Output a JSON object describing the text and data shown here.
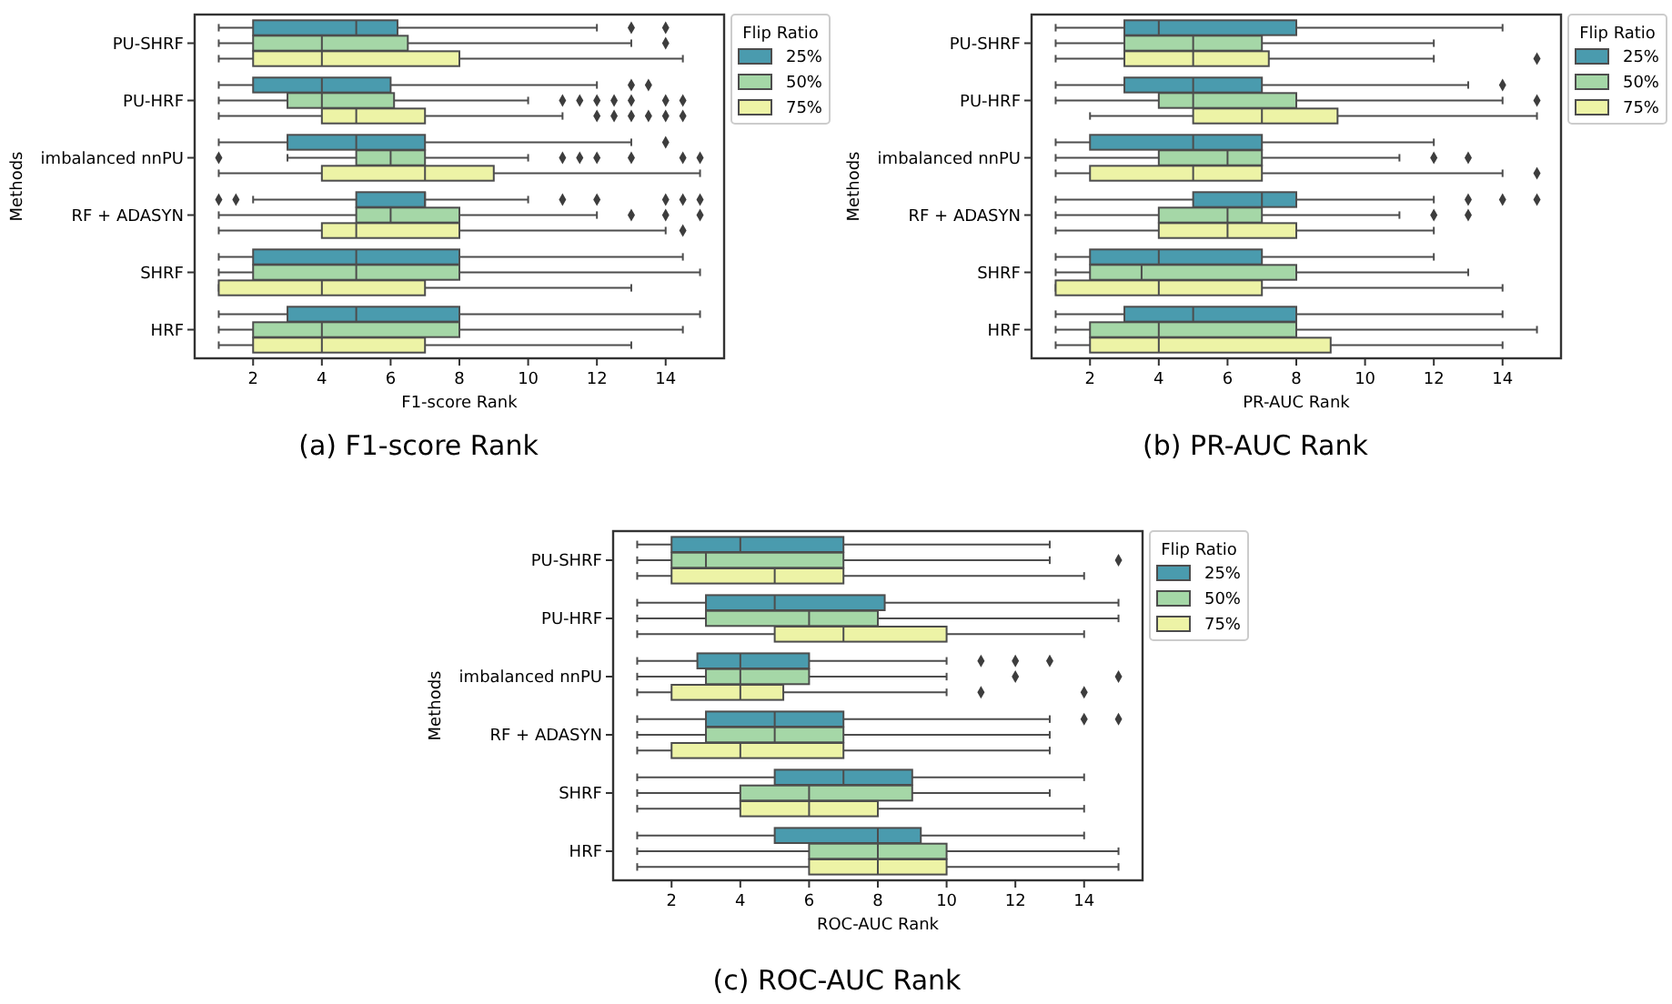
{
  "chart_data": [
    {
      "type": "box",
      "orientation": "horizontal",
      "xlabel": "F1-score Rank",
      "ylabel": "Methods",
      "legend_title": "Flip Ratio",
      "legend": "top right",
      "grid": false,
      "annotations": [
        "(a) F1-score Rank"
      ],
      "categories": [
        "PU-SHRF",
        "PU-HRF",
        "imbalanced nnPU",
        "RF + ADASYN",
        "SHRF",
        "HRF"
      ],
      "xlim": [
        0.3,
        15.7
      ],
      "xticks": [
        2,
        4,
        6,
        8,
        10,
        12,
        14
      ],
      "series": [
        {
          "name": "25%",
          "color": "#4a9bae",
          "boxes": [
            {
              "low": 1,
              "q1": 2,
              "median": 5,
              "q3": 6.2,
              "high": 12,
              "outliers": [
                13,
                14
              ]
            },
            {
              "low": 1,
              "q1": 2,
              "median": 4,
              "q3": 6,
              "high": 12,
              "outliers": [
                13,
                13.5
              ]
            },
            {
              "low": 1,
              "q1": 3,
              "median": 5,
              "q3": 7,
              "high": 13,
              "outliers": [
                14
              ]
            },
            {
              "low": 2,
              "q1": 5,
              "median": 7,
              "q3": 7,
              "high": 10,
              "outliers": [
                1,
                1.5,
                11,
                12,
                14,
                14.5,
                15
              ]
            },
            {
              "low": 1,
              "q1": 2,
              "median": 5,
              "q3": 8,
              "high": 14.5
            },
            {
              "low": 1,
              "q1": 3,
              "median": 5,
              "q3": 8,
              "high": 15
            }
          ]
        },
        {
          "name": "50%",
          "color": "#a5d7a7",
          "boxes": [
            {
              "low": 1,
              "q1": 2,
              "median": 4,
              "q3": 6.5,
              "high": 13,
              "outliers": [
                14
              ]
            },
            {
              "low": 1,
              "q1": 3,
              "median": 4,
              "q3": 6.1,
              "high": 10,
              "outliers": [
                11,
                11.5,
                12,
                12.5,
                13,
                14,
                14.5
              ]
            },
            {
              "low": 3,
              "q1": 5,
              "median": 6,
              "q3": 7,
              "high": 10,
              "outliers": [
                1,
                11,
                11.5,
                12,
                13,
                14.5,
                15
              ]
            },
            {
              "low": 1,
              "q1": 5,
              "median": 6,
              "q3": 8,
              "high": 12,
              "outliers": [
                13,
                14,
                15
              ]
            },
            {
              "low": 1,
              "q1": 2,
              "median": 5,
              "q3": 8,
              "high": 15
            },
            {
              "low": 1,
              "q1": 2,
              "median": 4,
              "q3": 8,
              "high": 14.5
            }
          ]
        },
        {
          "name": "75%",
          "color": "#edf3a6",
          "boxes": [
            {
              "low": 1,
              "q1": 2,
              "median": 4,
              "q3": 8,
              "high": 14.5
            },
            {
              "low": 1,
              "q1": 4,
              "median": 5,
              "q3": 7,
              "high": 11,
              "outliers": [
                12,
                12.5,
                13,
                13.5,
                14,
                14.5
              ]
            },
            {
              "low": 1,
              "q1": 4,
              "median": 7,
              "q3": 9,
              "high": 15
            },
            {
              "low": 1,
              "q1": 4,
              "median": 5,
              "q3": 8,
              "high": 14,
              "outliers": [
                14.5
              ]
            },
            {
              "low": 1,
              "q1": 1,
              "median": 4,
              "q3": 7,
              "high": 13
            },
            {
              "low": 1,
              "q1": 2,
              "median": 4,
              "q3": 7,
              "high": 13
            }
          ]
        }
      ]
    },
    {
      "type": "box",
      "orientation": "horizontal",
      "xlabel": "PR-AUC Rank",
      "ylabel": "Methods",
      "legend_title": "Flip Ratio",
      "legend": "top right",
      "grid": false,
      "annotations": [
        "(b) PR-AUC Rank"
      ],
      "categories": [
        "PU-SHRF",
        "PU-HRF",
        "imbalanced nnPU",
        "RF + ADASYN",
        "SHRF",
        "HRF"
      ],
      "xlim": [
        0.3,
        15.7
      ],
      "xticks": [
        2,
        4,
        6,
        8,
        10,
        12,
        14
      ],
      "series": [
        {
          "name": "25%",
          "color": "#4a9bae",
          "boxes": [
            {
              "low": 1,
              "q1": 3,
              "median": 4,
              "q3": 8,
              "high": 14
            },
            {
              "low": 1,
              "q1": 3,
              "median": 5,
              "q3": 7,
              "high": 13,
              "outliers": [
                14
              ]
            },
            {
              "low": 1,
              "q1": 2,
              "median": 5,
              "q3": 7,
              "high": 12
            },
            {
              "low": 1,
              "q1": 5,
              "median": 7,
              "q3": 8,
              "high": 12,
              "outliers": [
                13,
                14,
                15
              ]
            },
            {
              "low": 1,
              "q1": 2,
              "median": 4,
              "q3": 7,
              "high": 12
            },
            {
              "low": 1,
              "q1": 3,
              "median": 5,
              "q3": 8,
              "high": 14
            }
          ]
        },
        {
          "name": "50%",
          "color": "#a5d7a7",
          "boxes": [
            {
              "low": 1,
              "q1": 3,
              "median": 5,
              "q3": 7,
              "high": 12
            },
            {
              "low": 1,
              "q1": 4,
              "median": 5,
              "q3": 8,
              "high": 14,
              "outliers": [
                15
              ]
            },
            {
              "low": 1,
              "q1": 4,
              "median": 6,
              "q3": 7,
              "high": 11,
              "outliers": [
                12,
                13
              ]
            },
            {
              "low": 1,
              "q1": 4,
              "median": 6,
              "q3": 7,
              "high": 11,
              "outliers": [
                12,
                13
              ]
            },
            {
              "low": 1,
              "q1": 2,
              "median": 3.5,
              "q3": 8,
              "high": 13
            },
            {
              "low": 1,
              "q1": 2,
              "median": 4,
              "q3": 8,
              "high": 15
            }
          ]
        },
        {
          "name": "75%",
          "color": "#edf3a6",
          "boxes": [
            {
              "low": 1,
              "q1": 3,
              "median": 5,
              "q3": 7.2,
              "high": 12,
              "outliers": [
                15
              ]
            },
            {
              "low": 2,
              "q1": 5,
              "median": 7,
              "q3": 9.2,
              "high": 15
            },
            {
              "low": 1,
              "q1": 2,
              "median": 5,
              "q3": 7,
              "high": 14,
              "outliers": [
                15
              ]
            },
            {
              "low": 1,
              "q1": 4,
              "median": 6,
              "q3": 8,
              "high": 12
            },
            {
              "low": 1,
              "q1": 1,
              "median": 4,
              "q3": 7,
              "high": 14
            },
            {
              "low": 1,
              "q1": 2,
              "median": 4,
              "q3": 9,
              "high": 14
            }
          ]
        }
      ]
    },
    {
      "type": "box",
      "orientation": "horizontal",
      "xlabel": "ROC-AUC Rank",
      "ylabel": "Methods",
      "legend_title": "Flip Ratio",
      "legend": "top right",
      "grid": false,
      "annotations": [
        "(c) ROC-AUC Rank"
      ],
      "categories": [
        "PU-SHRF",
        "PU-HRF",
        "imbalanced nnPU",
        "RF + ADASYN",
        "SHRF",
        "HRF"
      ],
      "xlim": [
        0.3,
        15.7
      ],
      "xticks": [
        2,
        4,
        6,
        8,
        10,
        12,
        14
      ],
      "series": [
        {
          "name": "25%",
          "color": "#4a9bae",
          "boxes": [
            {
              "low": 1,
              "q1": 2,
              "median": 4,
              "q3": 7,
              "high": 13
            },
            {
              "low": 1,
              "q1": 3,
              "median": 5,
              "q3": 8.2,
              "high": 15
            },
            {
              "low": 1,
              "q1": 2.75,
              "median": 4,
              "q3": 6,
              "high": 10,
              "outliers": [
                11,
                12,
                13
              ]
            },
            {
              "low": 1,
              "q1": 3,
              "median": 5,
              "q3": 7,
              "high": 13,
              "outliers": [
                14,
                15
              ]
            },
            {
              "low": 1,
              "q1": 5,
              "median": 7,
              "q3": 9,
              "high": 14
            },
            {
              "low": 1,
              "q1": 5,
              "median": 8,
              "q3": 9.25,
              "high": 14
            }
          ]
        },
        {
          "name": "50%",
          "color": "#a5d7a7",
          "boxes": [
            {
              "low": 1,
              "q1": 2,
              "median": 3,
              "q3": 7,
              "high": 13,
              "outliers": [
                15
              ]
            },
            {
              "low": 1,
              "q1": 3,
              "median": 6,
              "q3": 8,
              "high": 15
            },
            {
              "low": 1,
              "q1": 3,
              "median": 4,
              "q3": 6,
              "high": 10,
              "outliers": [
                12,
                15
              ]
            },
            {
              "low": 1,
              "q1": 3,
              "median": 5,
              "q3": 7,
              "high": 13
            },
            {
              "low": 1,
              "q1": 4,
              "median": 6,
              "q3": 9,
              "high": 13
            },
            {
              "low": 1,
              "q1": 6,
              "median": 8,
              "q3": 10,
              "high": 15
            }
          ]
        },
        {
          "name": "75%",
          "color": "#edf3a6",
          "boxes": [
            {
              "low": 1,
              "q1": 2,
              "median": 5,
              "q3": 7,
              "high": 14
            },
            {
              "low": 1,
              "q1": 5,
              "median": 7,
              "q3": 10,
              "high": 14
            },
            {
              "low": 1,
              "q1": 2,
              "median": 4,
              "q3": 5.25,
              "high": 10,
              "outliers": [
                11,
                14
              ]
            },
            {
              "low": 1,
              "q1": 2,
              "median": 4,
              "q3": 7,
              "high": 13
            },
            {
              "low": 1,
              "q1": 4,
              "median": 6,
              "q3": 8,
              "high": 14
            },
            {
              "low": 1,
              "q1": 6,
              "median": 8,
              "q3": 10,
              "high": 15
            }
          ]
        }
      ]
    }
  ]
}
